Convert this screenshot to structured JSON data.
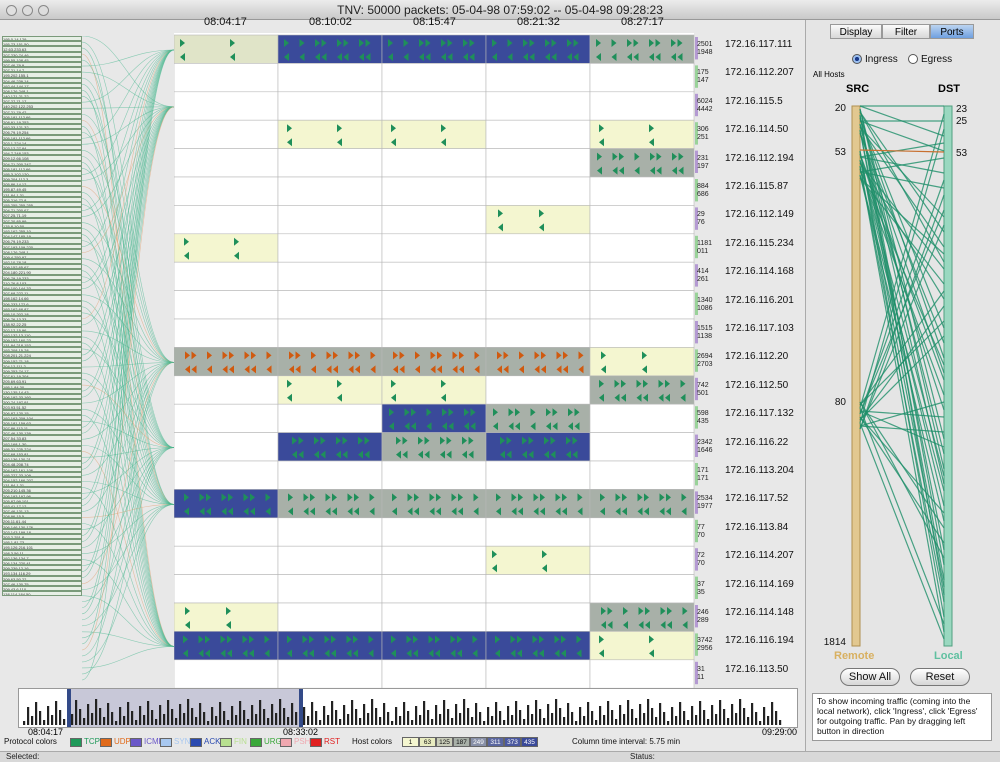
{
  "window": {
    "title": "TNV: 50000 packets: 05-04-98 07:59:02 -- 05-04-98 09:28:23"
  },
  "time_labels": [
    "08:04:17",
    "08:10:02",
    "08:15:47",
    "08:21:32",
    "08:27:17"
  ],
  "hosts": [
    {
      "ip": "172.16.117.111",
      "in": "2501",
      "out": "1948",
      "cells": [
        "c",
        "b",
        "b",
        "b",
        "g"
      ]
    },
    {
      "ip": "172.16.112.207",
      "in": "175",
      "out": "147",
      "cells": [
        "",
        "",
        "",
        "",
        ""
      ]
    },
    {
      "ip": "172.16.115.5",
      "in": "6024",
      "out": "4442",
      "cells": [
        "",
        "",
        "",
        "",
        ""
      ]
    },
    {
      "ip": "172.16.114.50",
      "in": "306",
      "out": "251",
      "cells": [
        "",
        "y",
        "y",
        "",
        "y"
      ]
    },
    {
      "ip": "172.16.112.194",
      "in": "231",
      "out": "197",
      "cells": [
        "",
        "",
        "",
        "",
        "g"
      ]
    },
    {
      "ip": "172.16.115.87",
      "in": "884",
      "out": "686",
      "cells": [
        "",
        "",
        "",
        "",
        ""
      ]
    },
    {
      "ip": "172.16.112.149",
      "in": "29",
      "out": "76",
      "cells": [
        "",
        "",
        "",
        "y",
        ""
      ]
    },
    {
      "ip": "172.16.115.234",
      "in": "1181",
      "out": "011",
      "cells": [
        "y",
        "",
        "",
        "",
        ""
      ]
    },
    {
      "ip": "172.16.114.168",
      "in": "414",
      "out": "261",
      "cells": [
        "",
        "",
        "",
        "",
        ""
      ]
    },
    {
      "ip": "172.16.116.201",
      "in": "1340",
      "out": "1086",
      "cells": [
        "",
        "",
        "",
        "",
        ""
      ]
    },
    {
      "ip": "172.16.117.103",
      "in": "1515",
      "out": "1138",
      "cells": [
        "",
        "",
        "",
        "",
        ""
      ]
    },
    {
      "ip": "172.16.112.20",
      "in": "2694",
      "out": "2703",
      "cells": [
        "g",
        "g",
        "g",
        "g",
        "y"
      ]
    },
    {
      "ip": "172.16.112.50",
      "in": "742",
      "out": "501",
      "cells": [
        "",
        "y",
        "y",
        "",
        "g"
      ]
    },
    {
      "ip": "172.16.117.132",
      "in": "598",
      "out": "435",
      "cells": [
        "",
        "",
        "b",
        "g",
        ""
      ]
    },
    {
      "ip": "172.16.116.22",
      "in": "2342",
      "out": "1646",
      "cells": [
        "",
        "b",
        "g",
        "b",
        ""
      ]
    },
    {
      "ip": "172.16.113.204",
      "in": "171",
      "out": "171",
      "cells": [
        "",
        "",
        "",
        "",
        ""
      ]
    },
    {
      "ip": "172.16.117.52",
      "in": "2534",
      "out": "1977",
      "cells": [
        "b",
        "g",
        "g",
        "g",
        "g"
      ]
    },
    {
      "ip": "172.16.113.84",
      "in": "77",
      "out": "70",
      "cells": [
        "",
        "",
        "",
        "",
        ""
      ]
    },
    {
      "ip": "172.16.114.207",
      "in": "72",
      "out": "70",
      "cells": [
        "",
        "",
        "",
        "y",
        ""
      ]
    },
    {
      "ip": "172.16.114.169",
      "in": "37",
      "out": "35",
      "cells": [
        "",
        "",
        "",
        "",
        ""
      ]
    },
    {
      "ip": "172.16.114.148",
      "in": "246",
      "out": "289",
      "cells": [
        "y",
        "",
        "",
        "",
        "g"
      ]
    },
    {
      "ip": "172.16.116.194",
      "in": "3742",
      "out": "2956",
      "cells": [
        "b",
        "b",
        "b",
        "b",
        "y"
      ]
    },
    {
      "ip": "172.16.113.50",
      "in": "31",
      "out": "11",
      "cells": [
        "",
        "",
        "",
        "",
        ""
      ]
    }
  ],
  "remote_ips": [
    "195.0.14.129",
    "195.73.151.50",
    "12.63.233.63",
    "207.230.74.46",
    "199.55.108.45",
    "207.46.79.9",
    "207.21.14.7",
    "195.202.155.1",
    "204.46.239.14",
    "192.44.144.17",
    "208.176.248.1",
    "140.171.21.22",
    "207.27.71.17",
    "140.202.122.253",
    "207.21.79.42",
    "205.181.112.66",
    "208.91.19.253",
    "192.33.121.32",
    "206.79.19.254",
    "205.181.112.66",
    "203.1.224.14",
    "203.12.27.84",
    "194.7.248.153",
    "209.12.66.108",
    "204.71.200.247",
    "205.181.112.66",
    "195.3.102.120",
    "209.204.112.3",
    "205.86.14.12",
    "195.87.49.45",
    "131.84.1.31",
    "205.216.72.8",
    "155.255.255.255",
    "204.71.200.67",
    "207.25.71.19",
    "207.20.85.99",
    "176.8.10.50",
    "193.162.255.10",
    "204.147.185.19",
    "206.79.19.233",
    "207.193.109.220",
    "208.176.248.1",
    "209.4.250.97",
    "192.10.78.18",
    "209.152.65.67",
    "204.180.221.90",
    "206.79.19.233",
    "210.76.8.103",
    "194.100.144.33",
    "207.68.222.11",
    "198.162.14.66",
    "206.233.172.6",
    "193.162.68.87",
    "195.10.202.18",
    "206.76.13.33",
    "138.92.22.25",
    "202.12.15.96",
    "192.132.13.110",
    "209.152.160.23",
    "131.94.218.153",
    "193.208.15.28",
    "208.201.21.224",
    "209.152.71.18",
    "204.12.111.2",
    "209.253.74.17",
    "207.61.19.204",
    "205.69.63.91",
    "195.1.84.30",
    "130.135.14.43",
    "206.192.33.160",
    "200.74.197.91",
    "203.93.51.52",
    "206.87.120.15",
    "192.163.209.104",
    "205.181.159.63",
    "207.86.113.11",
    "207.46.130.139",
    "207.54.33.83",
    "192.168.1.30",
    "195.31.225.224",
    "207.68.153.81",
    "192.136.130.21",
    "204.48.208.74",
    "204.162.161.106",
    "195.227.33.109",
    "204.152.166.207",
    "131.84.1.31",
    "205.210.145.36",
    "206.193.197.96",
    "205.87.99.101",
    "193.41.17.12",
    "207.46.131.13",
    "208.96.15.5",
    "206.11.61.44",
    "206.146.130.176",
    "203.143.199.18",
    "203.2.251.8",
    "195.1.81.73",
    "195.126.216.101",
    "198.3.56.11",
    "192.136.134.7",
    "206.134.220.41",
    "209.239.12.16",
    "193.134.116.29",
    "209.63.50.22",
    "207.46.130.75",
    "209.43.6.110",
    "138.114.184.50"
  ],
  "right_panel": {
    "tabs": [
      "Display",
      "Filter",
      "Ports"
    ],
    "selected_tab": "Ports",
    "radios": [
      "Ingress",
      "Egress"
    ],
    "selected_radio": "Ingress",
    "all_hosts_label": "All Hosts",
    "src_label": "SRC",
    "dst_label": "DST",
    "src_ports": [
      "20",
      "53",
      "80",
      "1814"
    ],
    "dst_ports": [
      "23",
      "25",
      "53"
    ],
    "remote_label": "Remote",
    "local_label": "Local",
    "show_all": "Show All",
    "reset": "Reset",
    "help_text": "To show incoming traffic (coming into the local network), click 'Ingress', click 'Egress' for outgoing traffic. Pan by dragging left button in direction"
  },
  "timeline": {
    "start": "08:04:17",
    "marker": "08:33:02",
    "end": "09:29:00"
  },
  "legend": {
    "protocol_label": "Protocol colors",
    "protocols": [
      {
        "name": "TCP",
        "color": "#1f9a5a"
      },
      {
        "name": "UDP",
        "color": "#e06a1a"
      },
      {
        "name": "ICMP",
        "color": "#6a58c8"
      },
      {
        "name": "SYN",
        "color": "#a8c8f0"
      },
      {
        "name": "ACK",
        "color": "#2a4ab0"
      },
      {
        "name": "FIN",
        "color": "#b8e090"
      },
      {
        "name": "URG",
        "color": "#3aa83a"
      },
      {
        "name": "PSH",
        "color": "#f0a8b0"
      },
      {
        "name": "RST",
        "color": "#e02020"
      }
    ],
    "host_label": "Host colors",
    "host_scale": [
      "1",
      "63",
      "125",
      "187",
      "249",
      "311",
      "373",
      "435"
    ],
    "interval": "Column time interval: 5.75 min"
  },
  "status": {
    "selected": "Selected:",
    "status": "Status:"
  },
  "colors": {
    "blue": "#3a4a9a",
    "green": "#a8b0a8",
    "yellow": "#f4f6d0",
    "tcp": "#1f8f5a",
    "udp": "#d05a10"
  }
}
